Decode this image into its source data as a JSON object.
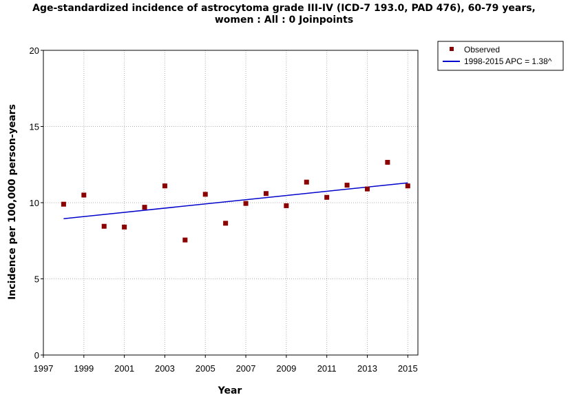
{
  "chart_data": {
    "type": "scatter",
    "title_lines": [
      "Age-standardized incidence of astrocytoma grade III-IV (ICD-7 193.0, PAD 476), 60-79 years,",
      "women : All : 0 Joinpoints"
    ],
    "xlabel": "Year",
    "ylabel": "Incidence per 100,000 person-years",
    "xlim": [
      1997,
      2015.5
    ],
    "ylim": [
      0,
      20
    ],
    "x_ticks": [
      1997,
      1999,
      2001,
      2003,
      2005,
      2007,
      2009,
      2011,
      2013,
      2015
    ],
    "x_grid": [
      1999,
      2001,
      2003,
      2005,
      2007,
      2009,
      2011,
      2013,
      2015
    ],
    "y_ticks": [
      0,
      5,
      10,
      15,
      20
    ],
    "grid": true,
    "legend_position": "top-right, outside plot",
    "series": [
      {
        "name": "Observed",
        "kind": "points",
        "color": "#8b0000",
        "x": [
          1998,
          1999,
          2000,
          2001,
          2002,
          2003,
          2004,
          2005,
          2006,
          2007,
          2008,
          2009,
          2010,
          2011,
          2012,
          2013,
          2014,
          2015
        ],
        "y": [
          9.9,
          10.5,
          8.45,
          8.4,
          9.7,
          11.1,
          7.55,
          10.55,
          8.65,
          9.95,
          10.6,
          9.8,
          11.35,
          10.35,
          11.15,
          10.9,
          12.65,
          11.1
        ]
      },
      {
        "name": "1998-2015 APC  = 1.38^",
        "kind": "line",
        "color": "#0000cc",
        "x": [
          1998,
          2015
        ],
        "y": [
          8.95,
          11.3
        ]
      }
    ]
  }
}
